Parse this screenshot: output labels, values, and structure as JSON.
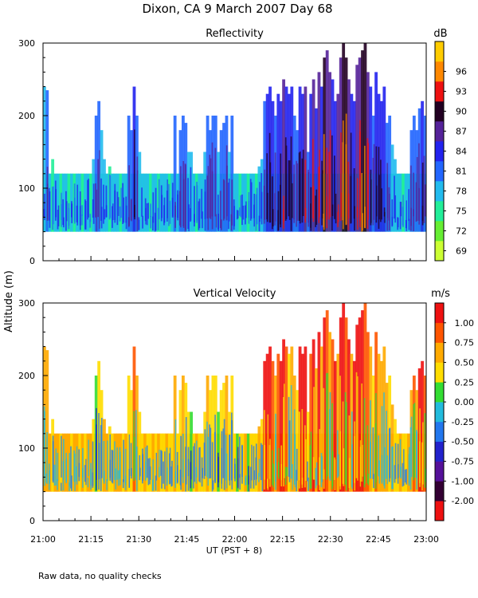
{
  "figure": {
    "title": "Dixon, CA  9 March 2007  Day  68",
    "ylabel": "Altitude (m)",
    "xlabel": "UT  (PST + 8)",
    "footnote": "Raw data, no quality checks"
  },
  "chart_data": [
    {
      "type": "heatmap",
      "title": "Reflectivity",
      "colorbar_unit": "dB",
      "x_ticks": [
        "21:00",
        "21:15",
        "21:30",
        "21:45",
        "22:00",
        "22:15",
        "22:30",
        "22:45",
        "23:00"
      ],
      "x_range_minutes_ut": [
        1260,
        1380
      ],
      "ylim": [
        0,
        300
      ],
      "y_ticks": [
        0,
        100,
        200,
        300
      ],
      "data_floor_m": 40,
      "colorbar_labels": [
        "69",
        "72",
        "75",
        "78",
        "81",
        "84",
        "87",
        "90",
        "93",
        "96"
      ],
      "colorbar_colors": [
        "#ccff33",
        "#66ee33",
        "#22ee99",
        "#22bbee",
        "#2266ff",
        "#2222ee",
        "#552299",
        "#220022",
        "#ee1111",
        "#ff8800",
        "#ffcc00"
      ],
      "column_tops_m": [
        240,
        235,
        120,
        140,
        120,
        120,
        120,
        120,
        120,
        120,
        120,
        120,
        120,
        120,
        120,
        120,
        120,
        120,
        140,
        200,
        220,
        180,
        140,
        120,
        130,
        120,
        120,
        120,
        120,
        120,
        120,
        200,
        180,
        240,
        200,
        150,
        120,
        120,
        120,
        120,
        120,
        120,
        120,
        120,
        120,
        120,
        120,
        120,
        200,
        120,
        180,
        200,
        190,
        150,
        150,
        120,
        120,
        120,
        120,
        150,
        200,
        180,
        200,
        200,
        150,
        180,
        190,
        200,
        150,
        200,
        120,
        120,
        120,
        120,
        120,
        120,
        120,
        120,
        120,
        130,
        140,
        220,
        230,
        240,
        220,
        200,
        230,
        220,
        250,
        240,
        230,
        240,
        200,
        180,
        240,
        230,
        240,
        150,
        230,
        250,
        210,
        260,
        240,
        280,
        290,
        260,
        250,
        220,
        230,
        280,
        300,
        280,
        250,
        230,
        220,
        270,
        280,
        290,
        300,
        260,
        240,
        200,
        260,
        230,
        220,
        240,
        190,
        200,
        160,
        140,
        120,
        120,
        120,
        120,
        120,
        180,
        200,
        180,
        210,
        220,
        200
      ],
      "column_peak_class": [
        3,
        4,
        3,
        2,
        3,
        3,
        2,
        3,
        3,
        2,
        3,
        2,
        3,
        3,
        2,
        3,
        3,
        2,
        3,
        4,
        4,
        3,
        3,
        3,
        2,
        3,
        3,
        3,
        2,
        3,
        3,
        4,
        4,
        5,
        4,
        3,
        3,
        3,
        3,
        2,
        3,
        3,
        2,
        3,
        3,
        3,
        2,
        3,
        4,
        3,
        4,
        4,
        4,
        3,
        3,
        3,
        2,
        3,
        3,
        3,
        4,
        4,
        4,
        4,
        3,
        4,
        4,
        4,
        3,
        4,
        3,
        3,
        2,
        3,
        3,
        2,
        3,
        3,
        2,
        3,
        3,
        4,
        5,
        5,
        5,
        4,
        5,
        5,
        6,
        5,
        5,
        5,
        4,
        4,
        5,
        5,
        6,
        4,
        5,
        6,
        5,
        6,
        5,
        7,
        6,
        6,
        5,
        5,
        6,
        6,
        7,
        7,
        6,
        5,
        5,
        6,
        6,
        7,
        7,
        6,
        5,
        4,
        5,
        5,
        5,
        5,
        4,
        4,
        3,
        3,
        3,
        3,
        2,
        3,
        3,
        4,
        4,
        4,
        4,
        5,
        4
      ]
    },
    {
      "type": "heatmap",
      "title": "Vertical Velocity",
      "colorbar_unit": "m/s",
      "x_ticks": [
        "21:00",
        "21:15",
        "21:30",
        "21:45",
        "22:00",
        "22:15",
        "22:30",
        "22:45",
        "23:00"
      ],
      "x_range_minutes_ut": [
        1260,
        1380
      ],
      "ylim": [
        0,
        300
      ],
      "y_ticks": [
        0,
        100,
        200,
        300
      ],
      "data_floor_m": 40,
      "colorbar_labels": [
        "1.00",
        "0.75",
        "0.50",
        "0.25",
        "0.00",
        "-0.25",
        "-0.50",
        "-0.75",
        "-1.00",
        "-2.00"
      ],
      "colorbar_colors": [
        "#ee1111",
        "#ff5500",
        "#ffaa00",
        "#ffdd00",
        "#33dd33",
        "#22bbdd",
        "#2277ee",
        "#2222cc",
        "#551199",
        "#330033",
        "#ee1111"
      ],
      "column_tops_m": [
        240,
        235,
        120,
        140,
        120,
        120,
        120,
        120,
        120,
        120,
        120,
        120,
        120,
        120,
        120,
        120,
        120,
        120,
        140,
        200,
        220,
        180,
        140,
        120,
        130,
        120,
        120,
        120,
        120,
        120,
        120,
        200,
        180,
        240,
        200,
        150,
        120,
        120,
        120,
        120,
        120,
        120,
        120,
        120,
        120,
        120,
        120,
        120,
        200,
        120,
        180,
        200,
        190,
        150,
        150,
        120,
        120,
        120,
        120,
        150,
        200,
        180,
        200,
        200,
        150,
        180,
        190,
        200,
        150,
        200,
        120,
        120,
        120,
        120,
        120,
        120,
        120,
        120,
        120,
        130,
        140,
        220,
        230,
        240,
        220,
        200,
        230,
        220,
        250,
        240,
        230,
        240,
        200,
        180,
        240,
        230,
        240,
        150,
        230,
        250,
        210,
        260,
        240,
        280,
        290,
        260,
        250,
        220,
        230,
        280,
        300,
        280,
        250,
        230,
        220,
        270,
        280,
        290,
        300,
        260,
        240,
        200,
        260,
        230,
        220,
        240,
        190,
        200,
        160,
        140,
        120,
        120,
        120,
        120,
        120,
        180,
        200,
        180,
        210,
        220,
        200
      ],
      "column_dominant_velocity_ms": [
        0.6,
        0.7,
        0.5,
        0.3,
        0.5,
        0.5,
        0.4,
        0.5,
        0.6,
        0.5,
        0.4,
        0.5,
        0.5,
        0.3,
        0.5,
        0.4,
        0.5,
        0.5,
        0.3,
        0.2,
        0.4,
        0.3,
        0.5,
        0.5,
        0.3,
        0.4,
        0.5,
        0.5,
        0.6,
        0.4,
        0.5,
        0.3,
        0.4,
        0.8,
        0.5,
        0.3,
        0.4,
        0.5,
        0.4,
        0.3,
        0.5,
        0.4,
        0.5,
        0.3,
        0.4,
        0.5,
        0.4,
        0.3,
        0.5,
        0.4,
        0.3,
        0.6,
        0.4,
        0.3,
        0.2,
        0.4,
        0.5,
        0.3,
        0.4,
        0.3,
        0.5,
        0.4,
        0.3,
        0.4,
        0.2,
        0.3,
        0.4,
        0.5,
        0.3,
        0.4,
        0.3,
        0.2,
        0.4,
        0.3,
        0.5,
        0.2,
        0.4,
        0.3,
        0.3,
        0.5,
        0.4,
        1.0,
        1.1,
        1.0,
        0.9,
        0.6,
        0.8,
        1.0,
        1.1,
        0.9,
        0.4,
        0.5,
        0.6,
        0.3,
        1.0,
        1.1,
        1.0,
        0.4,
        0.9,
        1.0,
        0.5,
        1.1,
        0.6,
        1.0,
        0.8,
        0.6,
        0.9,
        1.0,
        0.5,
        1.1,
        1.0,
        0.9,
        1.0,
        0.6,
        1.1,
        1.0,
        1.1,
        1.0,
        0.9,
        0.8,
        0.5,
        0.4,
        0.9,
        0.6,
        0.5,
        0.7,
        0.5,
        0.4,
        0.5,
        0.3,
        0.4,
        0.5,
        0.3,
        0.4,
        0.5,
        0.6,
        0.9,
        0.7,
        1.0,
        1.0,
        0.9
      ]
    }
  ]
}
